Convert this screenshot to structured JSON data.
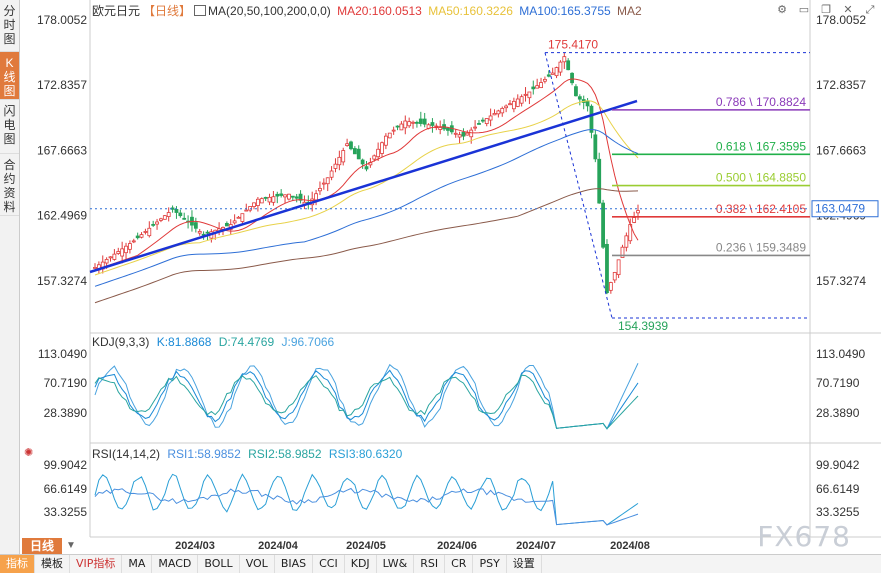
{
  "sidebar": {
    "tabs": [
      {
        "label": "分时图",
        "active": false
      },
      {
        "label": "K线图",
        "active": true
      },
      {
        "label": "闪电图",
        "active": false
      },
      {
        "label": "合约资料",
        "active": false
      }
    ]
  },
  "header": {
    "symbol": "欧元日元",
    "period": "【日线】",
    "ma_label": "MA(20,50,100,200,0,0)",
    "ma20": "MA20:160.0513",
    "ma50": "MA50:160.3226",
    "ma100": "MA100:165.3755",
    "ma2": "MA2"
  },
  "toolbar": {
    "icons": [
      "settings-icon",
      "minimize-icon",
      "restore-icon",
      "close-icon",
      "expand-icon"
    ]
  },
  "colors": {
    "up": "#e03a3a",
    "down": "#27a35a",
    "ma20": "#e03a3a",
    "ma50": "#e8d24a",
    "ma100": "#2e6fd6",
    "ma200": "#8a5a4a",
    "trendline": "#1a33d6",
    "fib_786": "#8a3ab9",
    "fib_618": "#21b04a",
    "fib_500": "#9acd32",
    "fib_382": "#e03a3a",
    "fib_236": "#888888",
    "kdj_k": "#1a8ad6",
    "kdj_d": "#2aa5a0",
    "kdj_j": "#4aa3df",
    "rsi1": "#4a8fdf",
    "rsi2": "#2aa5a0",
    "rsi3": "#2a9fd6"
  },
  "chart_data": {
    "type": "candlestick",
    "yaxis_ticks": [
      "178.0052",
      "172.8357",
      "167.6663",
      "162.4969",
      "157.3274"
    ],
    "ylim": [
      154.39,
      178.0052
    ],
    "current_price": "163.0479",
    "xaxis_ticks": [
      "2024/03",
      "2024/04",
      "2024/05",
      "2024/06",
      "2024/07",
      "2024/08"
    ],
    "high_label": "175.4170",
    "low_label": "154.3939",
    "fib_levels": [
      {
        "label": "0.786 \\ 170.8824",
        "value": 170.8824,
        "key": "fib_786"
      },
      {
        "label": "0.618 \\ 167.3595",
        "value": 167.3595,
        "key": "fib_618"
      },
      {
        "label": "0.500 \\ 164.8850",
        "value": 164.885,
        "key": "fib_500"
      },
      {
        "label": "0.382 \\ 162.4105",
        "value": 162.4105,
        "key": "fib_382"
      },
      {
        "label": "0.236 \\ 159.3489",
        "value": 159.3489,
        "key": "fib_236"
      }
    ],
    "kdj": {
      "title": "KDJ(9,3,3)",
      "k": "K:81.8868",
      "d": "D:74.4769",
      "j": "J:96.7066",
      "ticks": [
        "113.0490",
        "70.7190",
        "28.3890"
      ]
    },
    "rsi": {
      "title": "RSI(14,14,2)",
      "rsi1": "RSI1:58.9852",
      "rsi2": "RSI2:58.9852",
      "rsi3": "RSI3:80.6320",
      "ticks": [
        "99.9042",
        "66.6149",
        "33.3255"
      ]
    }
  },
  "period_button": "日线",
  "bottom_tabs": [
    "指标",
    "模板",
    "VIP指标",
    "MA",
    "MACD",
    "BOLL",
    "VOL",
    "BIAS",
    "CCI",
    "KDJ",
    "LW&",
    "RSI",
    "CR",
    "PSY",
    "设置"
  ],
  "watermark": "FX678"
}
